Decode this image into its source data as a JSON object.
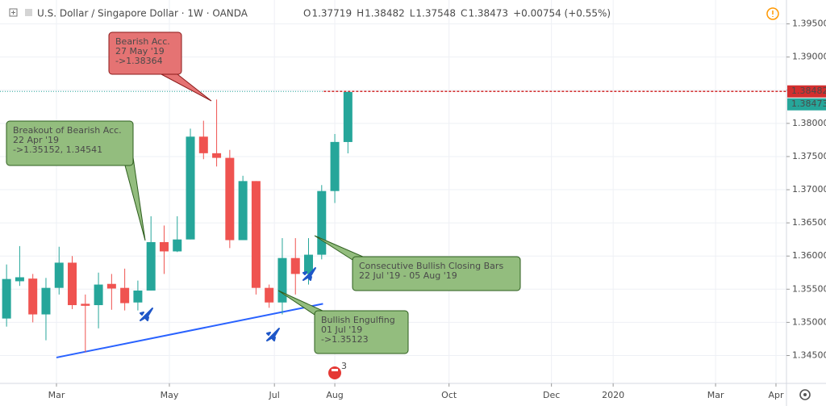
{
  "chart_data": {
    "type": "candlestick",
    "title": "U.S. Dollar / Singapore Dollar · 1W · OANDA",
    "header_fields": [
      {
        "key": "O",
        "value": "1.37719"
      },
      {
        "key": "H",
        "value": "1.38482"
      },
      {
        "key": "L",
        "value": "1.37548"
      },
      {
        "key": "C",
        "value": "1.38473"
      }
    ],
    "header_change": "+0.00754 (+0.55%)",
    "up_color": "#26a69a",
    "down_color": "#ef5350",
    "open": [
      1.35058,
      1.3562,
      1.3566,
      1.3512,
      1.3552,
      1.359,
      1.3528,
      1.3526,
      1.3558,
      1.3552,
      1.353,
      1.3548,
      1.3621,
      1.3607,
      1.3625,
      1.378,
      1.3755,
      1.3748,
      1.3624,
      1.3713,
      1.3552,
      1.353,
      1.3597,
      1.3573,
      1.3602,
      1.3698,
      1.37719
    ],
    "high": [
      1.35873,
      1.3615,
      1.3573,
      1.3567,
      1.3614,
      1.36,
      1.3542,
      1.3575,
      1.3573,
      1.3581,
      1.3563,
      1.366,
      1.3646,
      1.366,
      1.3792,
      1.3804,
      1.3836,
      1.376,
      1.3721,
      1.3713,
      1.3557,
      1.3627,
      1.3627,
      1.3627,
      1.3707,
      1.3784,
      1.38482
    ],
    "low": [
      1.34936,
      1.3555,
      1.35,
      1.3473,
      1.3542,
      1.352,
      1.3455,
      1.3491,
      1.3519,
      1.3518,
      1.3518,
      1.3548,
      1.3573,
      1.3606,
      1.3625,
      1.3746,
      1.3735,
      1.3612,
      1.3624,
      1.3542,
      1.3522,
      1.3512,
      1.3542,
      1.3557,
      1.3595,
      1.368,
      1.37548
    ],
    "close": [
      1.35654,
      1.3568,
      1.3512,
      1.3552,
      1.359,
      1.3526,
      1.3525,
      1.3557,
      1.3551,
      1.3529,
      1.3548,
      1.3621,
      1.3607,
      1.3625,
      1.378,
      1.3755,
      1.3748,
      1.3624,
      1.3713,
      1.3552,
      1.353,
      1.3597,
      1.3573,
      1.3602,
      1.3698,
      1.3772,
      1.38473
    ],
    "xlim": [
      -0.5,
      59.4
    ],
    "xticks": [
      {
        "value": 3.8,
        "label": "Mar"
      },
      {
        "value": 12.4,
        "label": "May"
      },
      {
        "value": 20.4,
        "label": "Jul"
      },
      {
        "value": 25.0,
        "label": "Aug"
      },
      {
        "value": 33.7,
        "label": "Oct"
      },
      {
        "value": 41.5,
        "label": "Dec"
      },
      {
        "value": 46.2,
        "label": "2020"
      },
      {
        "value": 54.0,
        "label": "Mar"
      },
      {
        "value": 58.6,
        "label": "Apr"
      }
    ],
    "ylim": [
      1.3408,
      1.3986
    ],
    "yticks": [
      {
        "value": 1.345,
        "label": "1.34500"
      },
      {
        "value": 1.35,
        "label": "1.35000"
      },
      {
        "value": 1.355,
        "label": "1.35500"
      },
      {
        "value": 1.36,
        "label": "1.36000"
      },
      {
        "value": 1.365,
        "label": "1.36500"
      },
      {
        "value": 1.37,
        "label": "1.37000"
      },
      {
        "value": 1.375,
        "label": "1.37500"
      },
      {
        "value": 1.38,
        "label": "1.38000"
      },
      {
        "value": 1.385,
        "label": "1.38500"
      },
      {
        "value": 1.39,
        "label": "1.39000"
      },
      {
        "value": 1.395,
        "label": "1.39500"
      }
    ],
    "grid": true,
    "price_labels": [
      {
        "value": 1.38482,
        "label": "1.38482",
        "color": "#d32f2f"
      },
      {
        "value": 1.38473,
        "label": "1.38473",
        "color": "#26a69a"
      }
    ],
    "trendline": {
      "x": [
        3.8,
        24.1
      ],
      "y": [
        1.3447,
        1.3528
      ],
      "color": "#2962ff"
    },
    "annotations": [
      {
        "lines": [
          "Bearish Acc.",
          "27 May '19",
          "->1.38364"
        ],
        "color": "#e57373"
      },
      {
        "lines": [
          "Breakout of Bearish Acc.",
          "22 Apr '19",
          "->1.35152, 1.34541"
        ],
        "color": "#93bd7e"
      },
      {
        "lines": [
          "Consecutive Bullish Closing Bars",
          "22 Jul '19 - 05 Aug '19"
        ],
        "color": "#93bd7e"
      },
      {
        "lines": [
          "Bullish Engulfing",
          "01 Jul '19",
          "->1.35123"
        ],
        "color": "#93bd7e"
      }
    ],
    "events_badge": "3"
  }
}
